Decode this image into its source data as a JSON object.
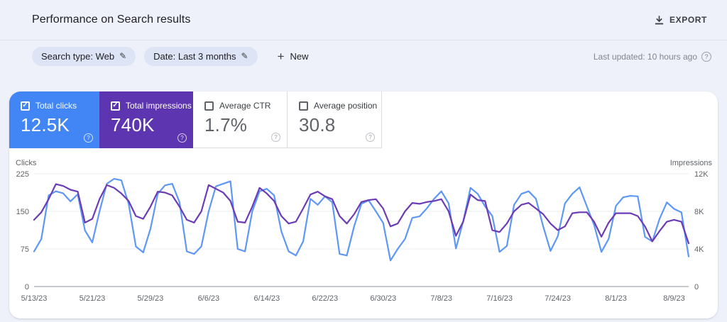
{
  "header": {
    "title": "Performance on Search results",
    "export_label": "EXPORT"
  },
  "filters": {
    "search_type": "Search type: Web",
    "date": "Date: Last 3 months",
    "new_label": "New",
    "last_updated": "Last updated: 10 hours ago"
  },
  "icons": {
    "check": "✓",
    "pencil": "✎",
    "plus": "+",
    "help": "?"
  },
  "metrics": [
    {
      "label": "Total clicks",
      "value": "12.5K",
      "checked": true,
      "color": "#4285f4"
    },
    {
      "label": "Total impressions",
      "value": "740K",
      "checked": true,
      "color": "#5e35b1"
    },
    {
      "label": "Average CTR",
      "value": "1.7%",
      "checked": false,
      "color": "#ffffff"
    },
    {
      "label": "Average position",
      "value": "30.8",
      "checked": false,
      "color": "#ffffff"
    }
  ],
  "chart_data": {
    "type": "line",
    "x": [
      "5/13/23",
      "5/14/23",
      "5/15/23",
      "5/16/23",
      "5/17/23",
      "5/18/23",
      "5/19/23",
      "5/20/23",
      "5/21/23",
      "5/22/23",
      "5/23/23",
      "5/24/23",
      "5/25/23",
      "5/26/23",
      "5/27/23",
      "5/28/23",
      "5/29/23",
      "5/30/23",
      "5/31/23",
      "6/1/23",
      "6/2/23",
      "6/3/23",
      "6/4/23",
      "6/5/23",
      "6/6/23",
      "6/7/23",
      "6/8/23",
      "6/9/23",
      "6/10/23",
      "6/11/23",
      "6/12/23",
      "6/13/23",
      "6/14/23",
      "6/15/23",
      "6/16/23",
      "6/17/23",
      "6/18/23",
      "6/19/23",
      "6/20/23",
      "6/21/23",
      "6/22/23",
      "6/23/23",
      "6/24/23",
      "6/25/23",
      "6/26/23",
      "6/27/23",
      "6/28/23",
      "6/29/23",
      "6/30/23",
      "7/1/23",
      "7/2/23",
      "7/3/23",
      "7/4/23",
      "7/5/23",
      "7/6/23",
      "7/7/23",
      "7/8/23",
      "7/9/23",
      "7/10/23",
      "7/11/23",
      "7/12/23",
      "7/13/23",
      "7/14/23",
      "7/15/23",
      "7/16/23",
      "7/17/23",
      "7/18/23",
      "7/19/23",
      "7/20/23",
      "7/21/23",
      "7/22/23",
      "7/23/23",
      "7/24/23",
      "7/25/23",
      "7/26/23",
      "7/27/23",
      "7/28/23",
      "7/29/23",
      "7/30/23",
      "7/31/23",
      "8/1/23",
      "8/2/23",
      "8/3/23",
      "8/4/23",
      "8/5/23",
      "8/6/23",
      "8/7/23",
      "8/8/23",
      "8/9/23",
      "8/10/23",
      "8/11/23"
    ],
    "x_tick_positions": [
      0,
      8,
      16,
      24,
      32,
      40,
      48,
      56,
      64,
      72,
      80,
      88
    ],
    "x_tick_labels": [
      "5/13/23",
      "5/21/23",
      "5/29/23",
      "6/6/23",
      "6/14/23",
      "6/22/23",
      "6/30/23",
      "7/8/23",
      "7/16/23",
      "7/24/23",
      "8/1/23",
      "8/9/23"
    ],
    "left_axis": {
      "label": "Clicks",
      "max": 225,
      "ticks": [
        "225",
        "150",
        "75",
        "0"
      ]
    },
    "right_axis": {
      "label": "Impressions",
      "max": 12000,
      "ticks": [
        "12K",
        "8K",
        "4K",
        "0"
      ]
    },
    "grid": "horizontal",
    "series": [
      {
        "name": "Total clicks",
        "axis": "left",
        "color": "#5e97f6",
        "values": [
          70,
          95,
          182,
          190,
          186,
          170,
          184,
          112,
          88,
          150,
          205,
          215,
          212,
          165,
          80,
          68,
          115,
          185,
          202,
          205,
          168,
          70,
          65,
          80,
          150,
          200,
          205,
          210,
          75,
          70,
          150,
          190,
          195,
          182,
          110,
          70,
          62,
          90,
          175,
          163,
          180,
          168,
          65,
          62,
          120,
          165,
          172,
          150,
          127,
          52,
          75,
          95,
          137,
          140,
          156,
          175,
          190,
          166,
          76,
          130,
          197,
          185,
          160,
          141,
          69,
          81,
          163,
          185,
          190,
          175,
          120,
          71,
          100,
          166,
          185,
          198,
          160,
          123,
          69,
          95,
          161,
          178,
          181,
          180,
          99,
          90,
          135,
          168,
          155,
          148,
          60
        ]
      },
      {
        "name": "Total impressions",
        "axis": "right",
        "color": "#6c3cb5",
        "values": [
          7100,
          7900,
          9300,
          10900,
          10700,
          10300,
          10100,
          6800,
          7200,
          9300,
          10800,
          10500,
          9900,
          9100,
          7500,
          7200,
          8500,
          10100,
          10000,
          9700,
          8500,
          7100,
          6800,
          8000,
          10800,
          10400,
          10000,
          9100,
          6900,
          6800,
          8500,
          10500,
          9900,
          9100,
          7500,
          6700,
          6900,
          8300,
          9800,
          10100,
          9600,
          9300,
          7500,
          6700,
          7700,
          9000,
          9200,
          9300,
          8300,
          6400,
          6700,
          8000,
          8900,
          8800,
          9000,
          9100,
          9300,
          8000,
          5400,
          6900,
          9800,
          9200,
          9100,
          6000,
          5800,
          6700,
          8000,
          8700,
          8900,
          8300,
          7700,
          6700,
          6000,
          6400,
          7800,
          7900,
          7900,
          6900,
          5300,
          6800,
          7800,
          7800,
          7800,
          7500,
          6400,
          4800,
          5900,
          6900,
          7100,
          6900,
          4600
        ]
      }
    ]
  }
}
